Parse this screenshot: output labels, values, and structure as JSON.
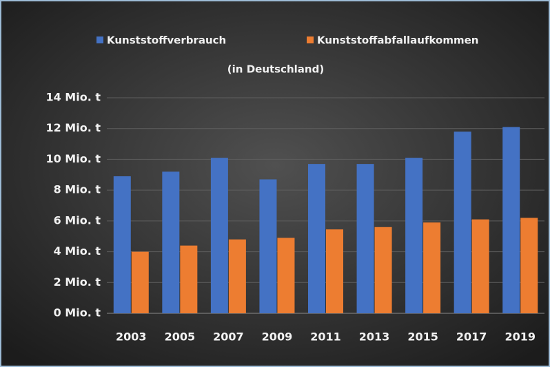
{
  "chart_data": {
    "type": "bar",
    "subtitle": "(in Deutschland)",
    "categories": [
      "2003",
      "2005",
      "2007",
      "2009",
      "2011",
      "2013",
      "2015",
      "2017",
      "2019"
    ],
    "series": [
      {
        "name": "Kunststoffverbrauch",
        "color": "#4472c4",
        "values": [
          8.9,
          9.2,
          10.1,
          8.7,
          9.7,
          9.7,
          10.1,
          11.8,
          12.1
        ]
      },
      {
        "name": "Kunststoffabfallaufkommen",
        "color": "#ed7d31",
        "values": [
          4.0,
          4.4,
          4.8,
          4.9,
          5.45,
          5.6,
          5.9,
          6.1,
          6.2
        ]
      }
    ],
    "ylim": [
      0,
      14
    ],
    "yticks": [
      {
        "value": 0,
        "label": "0 Mio. t"
      },
      {
        "value": 2,
        "label": "2 Mio. t"
      },
      {
        "value": 4,
        "label": "4 Mio. t"
      },
      {
        "value": 6,
        "label": "6 Mio. t"
      },
      {
        "value": 8,
        "label": "8 Mio. t"
      },
      {
        "value": 10,
        "label": "10 Mio. t"
      },
      {
        "value": 12,
        "label": "12 Mio. t"
      },
      {
        "value": 14,
        "label": "14 Mio. t"
      }
    ],
    "grid": true,
    "legend": "top"
  }
}
